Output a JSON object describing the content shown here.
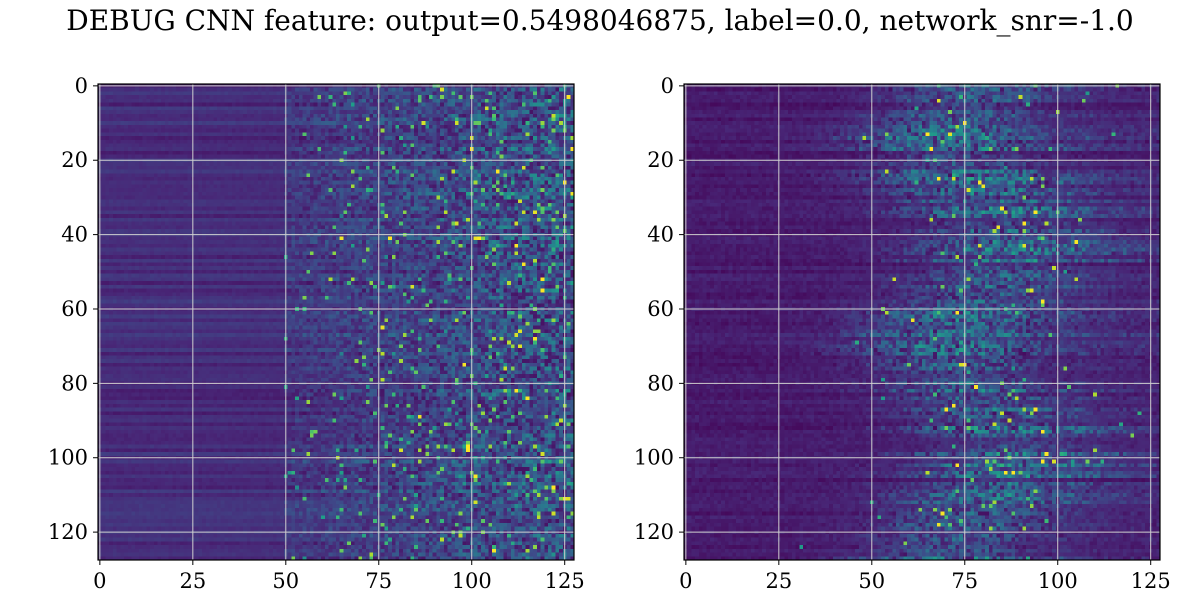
{
  "suptitle": "DEBUG CNN feature: output=0.5498046875, label=0.0, network_snr=-1.0",
  "chart_data": [
    {
      "type": "heatmap",
      "colormap": "viridis",
      "rows": 128,
      "cols": 128,
      "xlim": [
        -0.5,
        127.5
      ],
      "ylim": [
        127.5,
        -0.5
      ],
      "xticks": [
        0,
        25,
        50,
        75,
        100,
        125
      ],
      "yticks": [
        0,
        20,
        40,
        60,
        80,
        100,
        120
      ],
      "grid": true,
      "pattern": "low uniform horizontal stripes at columns 0-50, noisy bright speckle increasing toward columns 75-127"
    },
    {
      "type": "heatmap",
      "colormap": "viridis",
      "rows": 128,
      "cols": 128,
      "xlim": [
        -0.5,
        127.5
      ],
      "ylim": [
        127.5,
        -0.5
      ],
      "xticks": [
        0,
        25,
        50,
        75,
        100,
        125
      ],
      "yticks": [
        0,
        20,
        40,
        60,
        80,
        100,
        120
      ],
      "grid": true,
      "pattern": "mostly dark, bright band of speckle concentrated around columns 60-100"
    }
  ]
}
